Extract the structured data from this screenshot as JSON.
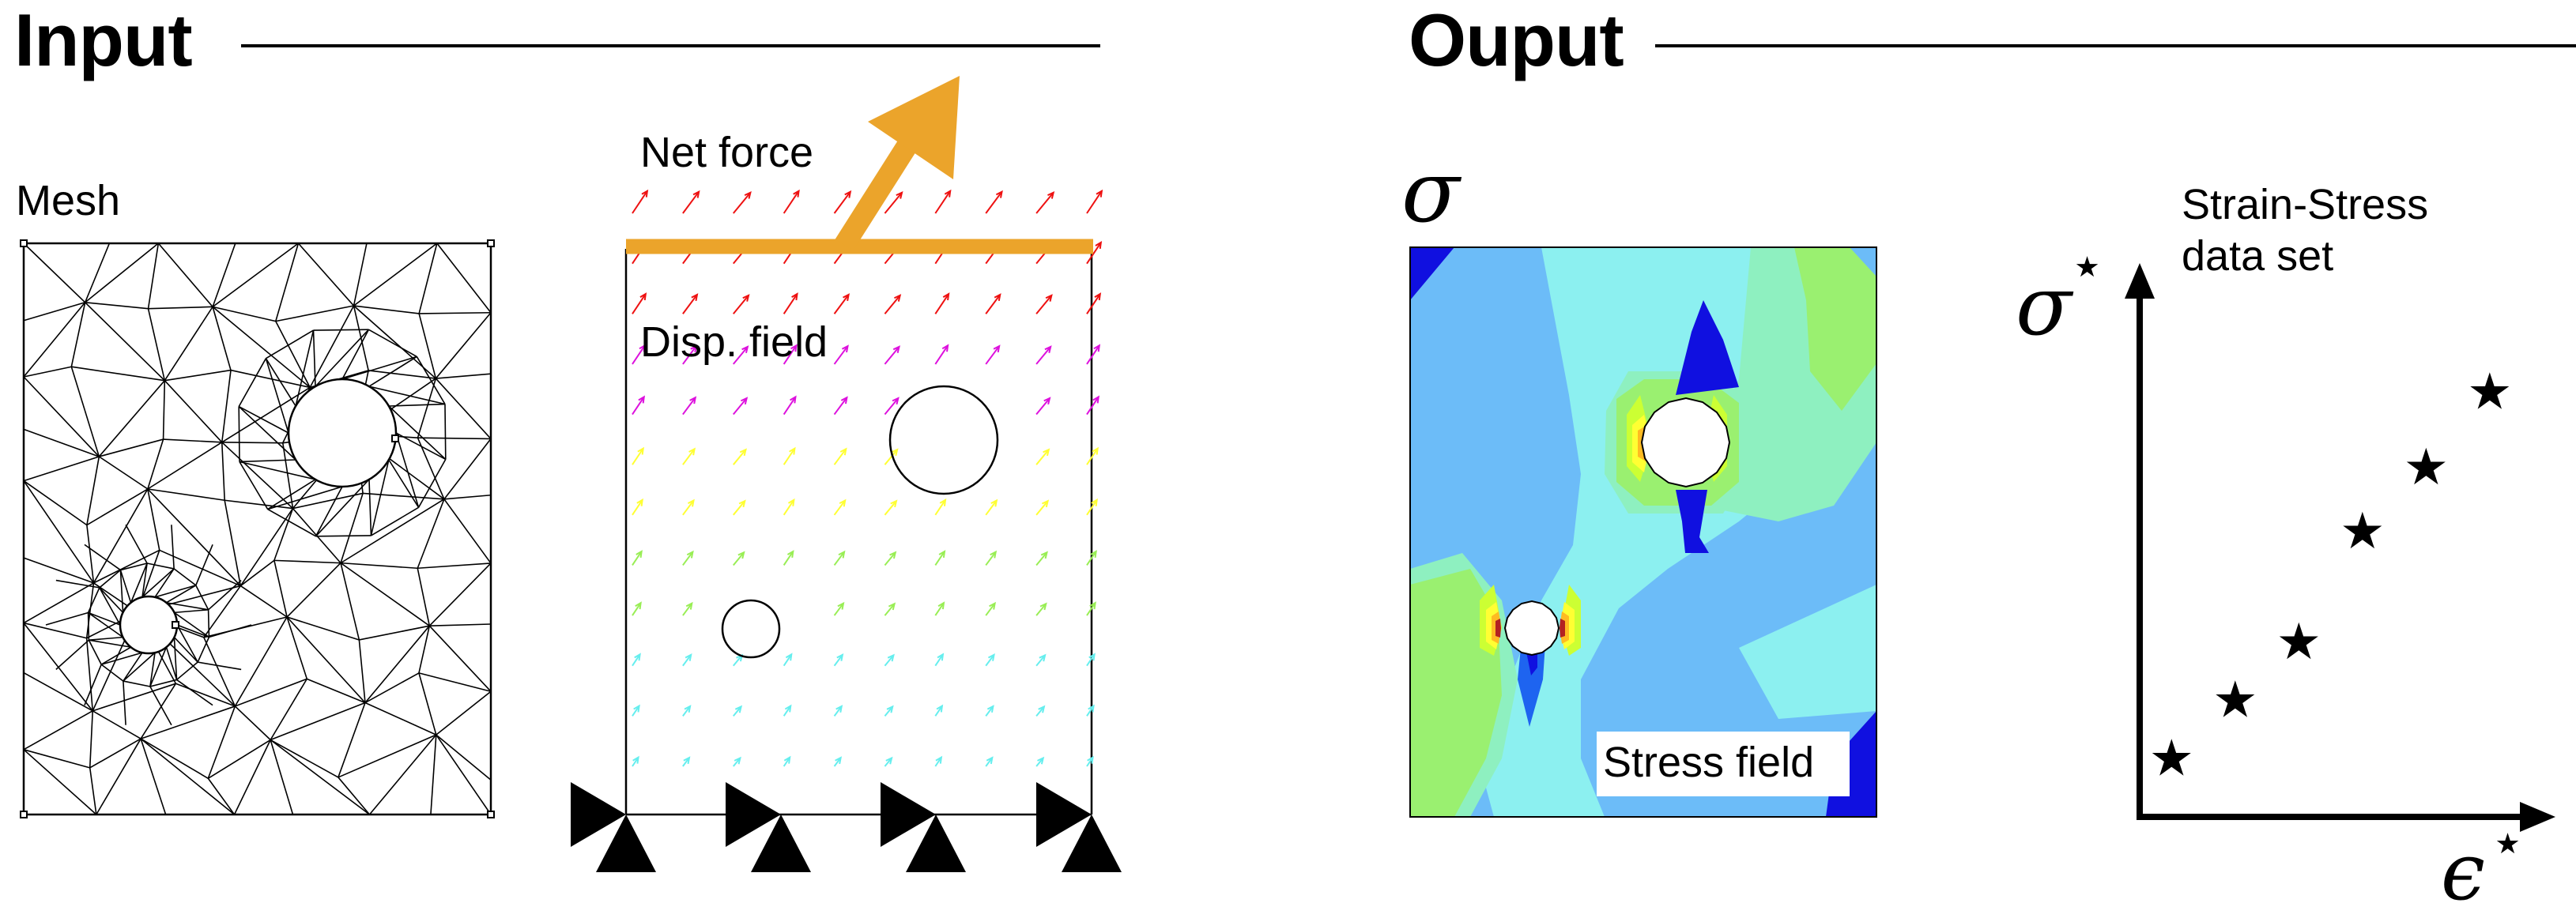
{
  "input_section": {
    "heading": "Input",
    "mesh": {
      "label": "Mesh"
    },
    "loading": {
      "net_force_label": "Net force",
      "disp_field_label": "Disp. field"
    }
  },
  "output_section": {
    "heading": "Ouput",
    "stress": {
      "symbol": "σ",
      "label": "Stress field"
    },
    "plot": {
      "title_line1": "Strain-Stress",
      "title_line2": "data set",
      "y_axis_symbol": "σ",
      "x_axis_symbol": "ϵ",
      "superscript": "⋆",
      "marker_glyph": "★"
    }
  },
  "chart_data": {
    "type": "scatter",
    "title": "Strain-Stress data set",
    "xlabel": "ϵ⋆",
    "ylabel": "σ⋆",
    "marker": "star",
    "series": [
      {
        "x": [
          1,
          2,
          3,
          4,
          5,
          6
        ],
        "y": [
          1,
          2,
          3,
          4.9,
          6,
          7.3
        ]
      }
    ]
  },
  "colors": {
    "force_arrow": "#EBA42B",
    "stress_map": [
      "#1010e0",
      "#1e64f0",
      "#6cbcf8",
      "#8cf0f0",
      "#8ef0c0",
      "#9af070",
      "#ccff33",
      "#ffff33",
      "#ffbb22",
      "#ff5a10",
      "#b22222"
    ],
    "displacement_arrows": [
      "#ee1111",
      "#dd11dd",
      "#ffff33",
      "#99ee55",
      "#66eeee"
    ]
  }
}
